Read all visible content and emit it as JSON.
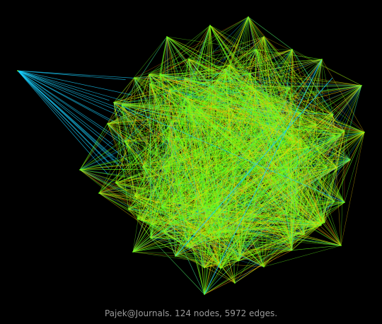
{
  "caption": "Pajek@Journals. 124 nodes, 5972 edges.",
  "graph": {
    "node_count": 124,
    "edge_count": 5972,
    "background_color": "#000000",
    "edge_colors": {
      "dense": "#66ff1a",
      "hot": "#ffdd00",
      "heavy": "#ff7a1a",
      "sparse": "#1ad0ff"
    }
  }
}
